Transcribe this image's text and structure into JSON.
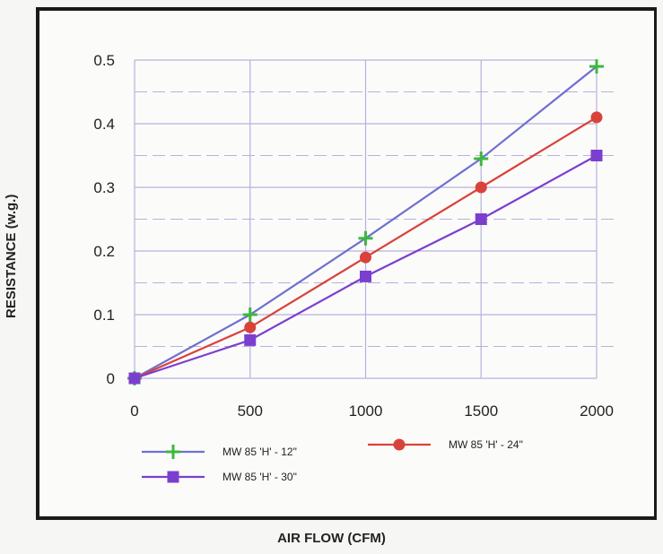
{
  "chart_data": {
    "type": "line",
    "title": "",
    "xlabel": "AIR FLOW (CFM)",
    "ylabel": "RESISTANCE (w.g.)",
    "x": [
      0,
      500,
      1000,
      1500,
      2000
    ],
    "xlim": [
      0,
      2000
    ],
    "ylim": [
      0,
      0.5
    ],
    "xticks": [
      "0",
      "500",
      "1000",
      "1500",
      "2000"
    ],
    "yticks": [
      "0",
      "0.1",
      "0.2",
      "0.3",
      "0.4",
      "0.5"
    ],
    "grid": true,
    "legend_position": "bottom",
    "series": [
      {
        "name": "MW 85 'H' - 12\"",
        "values": [
          0,
          0.1,
          0.22,
          0.345,
          0.49
        ],
        "color": "#6f6fd0",
        "marker": "plus",
        "marker_color": "#3db83d"
      },
      {
        "name": "MW 85 'H' - 24\"",
        "values": [
          0,
          0.08,
          0.19,
          0.3,
          0.41
        ],
        "color": "#d9423a",
        "marker": "circle",
        "marker_color": "#d9423a"
      },
      {
        "name": "MW 85 'H' - 30\"",
        "values": [
          0,
          0.06,
          0.16,
          0.25,
          0.35
        ],
        "color": "#7b3fd0",
        "marker": "square",
        "marker_color": "#7b3fd0"
      }
    ]
  }
}
